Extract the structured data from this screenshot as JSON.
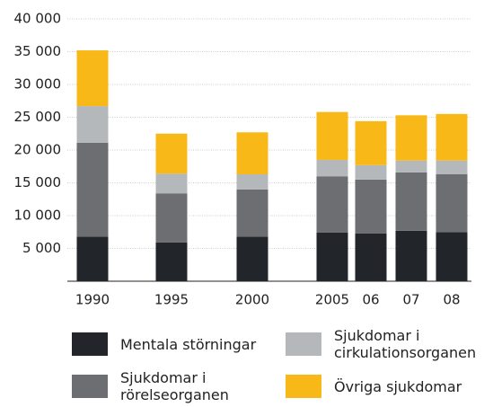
{
  "chart_data": {
    "type": "stacked-bar",
    "categories": [
      "1990",
      "1995",
      "2000",
      "2005",
      "06",
      "07",
      "08"
    ],
    "series": [
      {
        "name": "Mentala störningar",
        "color": "#22262b",
        "values": [
          6800,
          5900,
          6800,
          7400,
          7300,
          7700,
          7500
        ]
      },
      {
        "name": "Sjukdomar i rörelseorganen",
        "color": "#6d6e71",
        "values": [
          14300,
          7500,
          7200,
          8600,
          8200,
          8900,
          8800
        ]
      },
      {
        "name": "Sjukdomar i cirkulationsorganen",
        "color": "#b4b8bb",
        "values": [
          5600,
          3000,
          2300,
          2500,
          2200,
          1800,
          2100
        ]
      },
      {
        "name": "Övriga sjukdomar",
        "color": "#f8b818",
        "values": [
          8500,
          6100,
          6400,
          7300,
          6700,
          6900,
          7100
        ]
      }
    ],
    "ylim": [
      0,
      40000
    ],
    "yticks": [
      {
        "value": 5000,
        "label": "5 000"
      },
      {
        "value": 10000,
        "label": "10 000"
      },
      {
        "value": 15000,
        "label": "15 000"
      },
      {
        "value": 20000,
        "label": "20 000"
      },
      {
        "value": 25000,
        "label": "25 000"
      },
      {
        "value": 30000,
        "label": "30 000"
      },
      {
        "value": 35000,
        "label": "35 000"
      },
      {
        "value": 40000,
        "label": "40 000"
      }
    ],
    "grid": true
  }
}
